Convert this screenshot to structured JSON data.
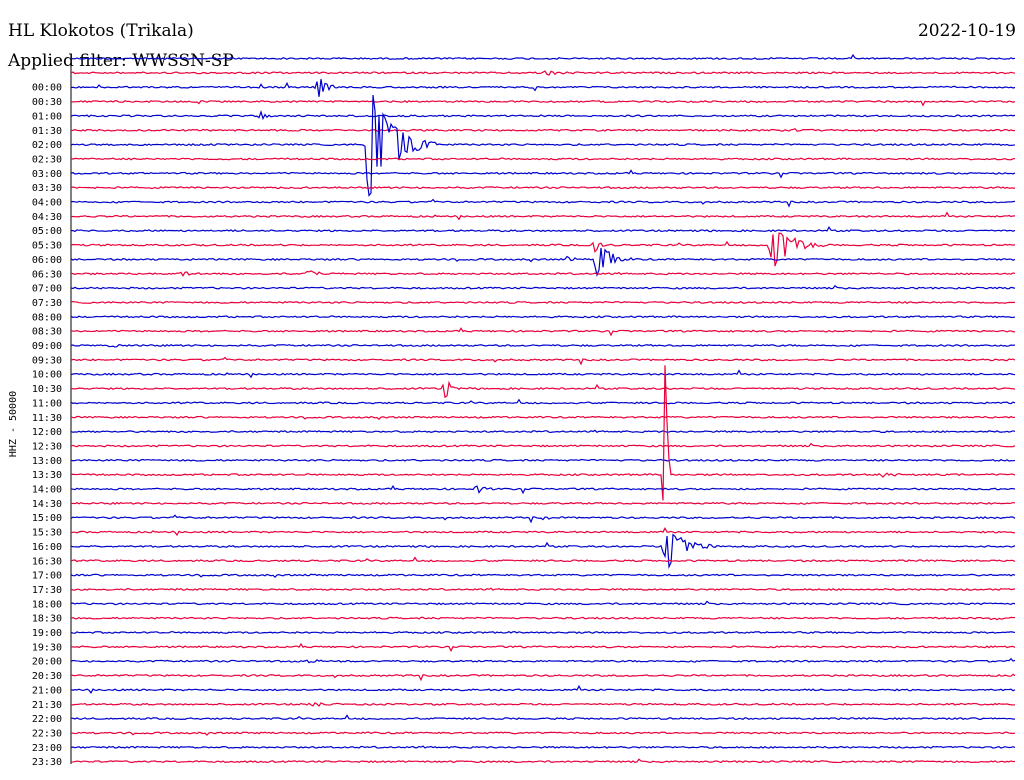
{
  "header": {
    "station": "HL Klokotos (Trikala)",
    "date": "2022-10-19",
    "filter": "Applied filter: WWSSN-SP"
  },
  "chart_data": {
    "type": "line",
    "title": "HL Klokotos (Trikala)",
    "ylabel": "HHZ - 50000",
    "colors": {
      "blue": "#0000cc",
      "red": "#e8003c"
    },
    "tick_labels": [
      "00:00",
      "00:30",
      "01:00",
      "01:30",
      "02:00",
      "02:30",
      "03:00",
      "03:30",
      "04:00",
      "04:30",
      "05:00",
      "05:30",
      "06:00",
      "06:30",
      "07:00",
      "07:30",
      "08:00",
      "08:30",
      "09:00",
      "09:30",
      "10:00",
      "10:30",
      "11:00",
      "11:30",
      "12:00",
      "12:30",
      "13:00",
      "13:30",
      "14:00",
      "14:30",
      "15:00",
      "15:30",
      "16:00",
      "16:30",
      "17:00",
      "17:30",
      "18:00",
      "18:30",
      "19:00",
      "19:30",
      "20:00",
      "20:30",
      "21:00",
      "21:30",
      "22:00",
      "22:30",
      "23:00",
      "23:30"
    ],
    "lines_total": 50,
    "events": [
      {
        "line": 1,
        "pos": 0.5,
        "amp": 3,
        "dur": 0.02
      },
      {
        "line": 2,
        "pos": 0.262,
        "amp": 12,
        "dur": 0.015
      },
      {
        "line": 4,
        "pos": 0.202,
        "amp": 5,
        "dur": 0.005
      },
      {
        "line": 6,
        "pos": 0.315,
        "amp": 64,
        "dur": 0.04
      },
      {
        "line": 13,
        "pos": 0.555,
        "amp": 8,
        "dur": 0.012
      },
      {
        "line": 13,
        "pos": 0.742,
        "amp": 28,
        "dur": 0.03
      },
      {
        "line": 14,
        "pos": 0.557,
        "amp": 26,
        "dur": 0.02
      },
      {
        "line": 14,
        "pos": 0.525,
        "amp": 3,
        "dur": 0.012
      },
      {
        "line": 15,
        "pos": 0.115,
        "amp": 3,
        "dur": 0.02
      },
      {
        "line": 15,
        "pos": 0.25,
        "amp": 4,
        "dur": 0.015
      },
      {
        "line": 20,
        "pos": 0.04,
        "amp": 2,
        "dur": 0.02
      },
      {
        "line": 23,
        "pos": 0.396,
        "amp": 12,
        "dur": 0.012
      },
      {
        "line": 29,
        "pos": 0.629,
        "amp": 140,
        "dur": 0.002
      },
      {
        "line": 29,
        "pos": 0.857,
        "amp": 3,
        "dur": 0.02
      },
      {
        "line": 30,
        "pos": 0.43,
        "amp": 6,
        "dur": 0.01
      },
      {
        "line": 32,
        "pos": 0.5,
        "amp": 2,
        "dur": 0.012
      },
      {
        "line": 34,
        "pos": 0.629,
        "amp": 26,
        "dur": 0.03
      },
      {
        "line": 39,
        "pos": 0.97,
        "amp": 2,
        "dur": 0.02
      },
      {
        "line": 42,
        "pos": 0.25,
        "amp": 2,
        "dur": 0.02
      },
      {
        "line": 45,
        "pos": 0.255,
        "amp": 2,
        "dur": 0.02
      }
    ]
  }
}
